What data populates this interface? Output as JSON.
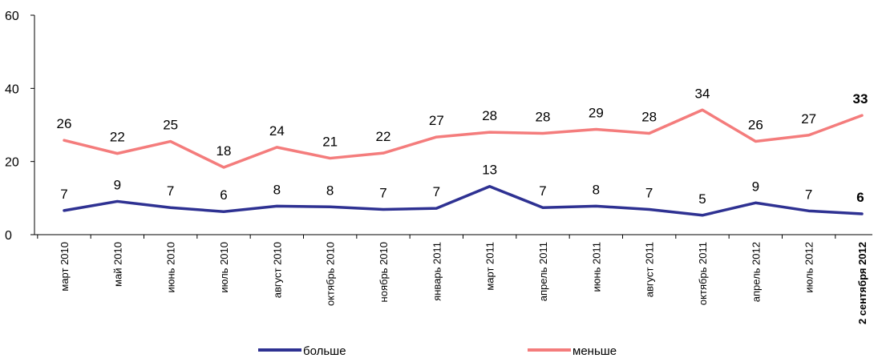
{
  "chart_data": {
    "type": "line",
    "categories": [
      "март 2010",
      "май 2010",
      "июнь 2010",
      "июль 2010",
      "август 2010",
      "октябрь 2010",
      "ноябрь 2010",
      "январь 2011",
      "март 2011",
      "апрель 2011",
      "июнь 2011",
      "август 2011",
      "октябрь 2011",
      "апрель 2012",
      "июль 2012",
      "2 сентября 2012"
    ],
    "ylim": [
      0,
      60
    ],
    "yticks": [
      "0",
      "20",
      "40",
      "60"
    ],
    "series": [
      {
        "name": "больше",
        "color": "#2e3192",
        "values": [
          7,
          9,
          7,
          6,
          8,
          8,
          7,
          7,
          13,
          7,
          8,
          7,
          5,
          9,
          7,
          6
        ],
        "plot_values": [
          6.6,
          9.1,
          7.4,
          6.3,
          7.8,
          7.6,
          6.9,
          7.2,
          13.2,
          7.4,
          7.8,
          6.9,
          5.3,
          8.7,
          6.5,
          5.7
        ]
      },
      {
        "name": "меньше",
        "color": "#f47c7c",
        "values": [
          26,
          22,
          25,
          18,
          24,
          21,
          22,
          27,
          28,
          28,
          29,
          28,
          34,
          26,
          27,
          33
        ],
        "plot_values": [
          25.8,
          22.2,
          25.5,
          18.4,
          23.9,
          20.9,
          22.3,
          26.7,
          28.0,
          27.7,
          28.8,
          27.7,
          34.1,
          25.5,
          27.2,
          32.6
        ]
      }
    ],
    "legend_position": "bottom",
    "grid": false,
    "highlight_last": true
  }
}
